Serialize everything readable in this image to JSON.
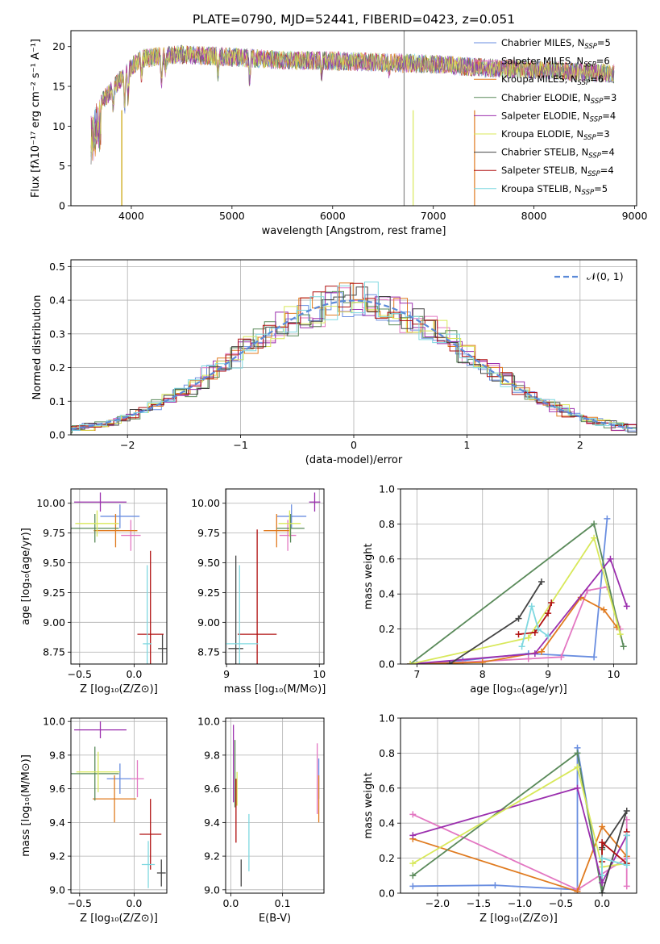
{
  "figure_title": "PLATE=0790, MJD=52441, FIBERID=0423, z=0.051",
  "series_styles": [
    {
      "color": "#6a8ee0"
    },
    {
      "color": "#e377c2"
    },
    {
      "color": "#e07b20"
    },
    {
      "color": "#5a8a5a"
    },
    {
      "color": "#9b2fae"
    },
    {
      "color": "#d8e85a"
    },
    {
      "color": "#444444"
    },
    {
      "color": "#b01010"
    },
    {
      "color": "#7fd8e0"
    }
  ],
  "chart_data": [
    {
      "id": "spectrum",
      "type": "line",
      "title": "",
      "xlabel": "wavelength [Angstrom, rest frame]",
      "ylabel": "Flux [fλ10⁻¹⁷ erg cm⁻² s⁻¹ A⁻¹]",
      "xlim": [
        3400,
        9020
      ],
      "ylim": [
        0,
        22
      ],
      "xticks": [
        4000,
        5000,
        6000,
        7000,
        8000,
        9000
      ],
      "yticks": [
        0,
        5,
        10,
        15,
        20
      ],
      "grid": false,
      "legend_position": "top-right",
      "legend": [
        "Chabrier MILES, N_SSP=5",
        "Salpeter MILES, N_SSP=6",
        "Kroupa MILES, N_SSP=6",
        "Chabrier ELODIE, N_SSP=3",
        "Salpeter ELODIE, N_SSP=4",
        "Kroupa ELODIE, N_SSP=3",
        "Chabrier STELIB, N_SSP=4",
        "Salpeter STELIB, N_SSP=4",
        "Kroupa STELIB, N_SSP=5"
      ],
      "data_envelope": {
        "x": [
          3600,
          3700,
          3800,
          3900,
          4000,
          4100,
          4300,
          4500,
          5000,
          5500,
          6000,
          6500,
          7000,
          7400,
          8000,
          8500,
          8800
        ],
        "y": [
          11,
          13,
          14.5,
          16,
          17.5,
          18.5,
          18.8,
          19,
          18.7,
          18.3,
          18.2,
          18,
          17.8,
          17.4,
          17.1,
          16.8,
          16.6
        ]
      }
    },
    {
      "id": "residuals",
      "type": "line",
      "title": "",
      "xlabel": "(data-model)/error",
      "ylabel": "Normed distribution",
      "xlim": [
        -2.5,
        2.5
      ],
      "ylim": [
        0,
        0.52
      ],
      "xticks": [
        -2,
        -1,
        0,
        1,
        2
      ],
      "yticks": [
        0.0,
        0.1,
        0.2,
        0.3,
        0.4,
        0.5
      ],
      "grid": true,
      "legend_position": "top-right",
      "legend": [
        "𝒩(0, 1)"
      ],
      "reference_curve": "standard normal"
    },
    {
      "id": "age_vs_Z",
      "type": "scatter",
      "xlabel": "Z [log₁₀(Z/Z⊙)]",
      "ylabel": "age  [log₁₀(age/yr)]",
      "xlim": [
        -0.58,
        0.3
      ],
      "ylim": [
        8.65,
        10.12
      ],
      "xticks": [
        -0.5,
        0.0
      ],
      "yticks": [
        8.75,
        9.0,
        9.25,
        9.5,
        9.75,
        10.0
      ],
      "grid": true,
      "points": [
        {
          "x": -0.13,
          "y": 9.89,
          "xerr": 0.18,
          "yerr": 0.1
        },
        {
          "x": -0.03,
          "y": 9.73,
          "xerr": 0.09,
          "yerr": 0.13
        },
        {
          "x": -0.17,
          "y": 9.77,
          "xerr": 0.2,
          "yerr": 0.14
        },
        {
          "x": -0.36,
          "y": 9.79,
          "xerr": 0.22,
          "yerr": 0.12
        },
        {
          "x": -0.31,
          "y": 10.01,
          "xerr": 0.24,
          "yerr": 0.08
        },
        {
          "x": -0.34,
          "y": 9.83,
          "xerr": 0.2,
          "yerr": 0.11
        },
        {
          "x": 0.26,
          "y": 8.78,
          "xerr": 0.04,
          "yerr": 0.12
        },
        {
          "x": 0.15,
          "y": 8.9,
          "xerr": 0.12,
          "yerr": 0.7
        },
        {
          "x": 0.12,
          "y": 8.82,
          "xerr": 0.04,
          "yerr": 0.66
        }
      ]
    },
    {
      "id": "age_vs_mass",
      "type": "scatter",
      "xlabel": "mass [log₁₀(M/M⊙)]",
      "ylabel": "",
      "xlim": [
        8.99,
        10.05
      ],
      "ylim": [
        8.65,
        10.12
      ],
      "xticks": [
        9,
        10
      ],
      "yticks": [
        8.75,
        9.0,
        9.25,
        9.5,
        9.75,
        10.0
      ],
      "grid": true,
      "points": [
        {
          "x": 9.7,
          "y": 9.89,
          "xerr": 0.16,
          "yerr": 0.1
        },
        {
          "x": 9.66,
          "y": 9.73,
          "xerr": 0.09,
          "yerr": 0.13
        },
        {
          "x": 9.54,
          "y": 9.77,
          "xerr": 0.14,
          "yerr": 0.14
        },
        {
          "x": 9.69,
          "y": 9.79,
          "xerr": 0.15,
          "yerr": 0.12
        },
        {
          "x": 9.95,
          "y": 10.01,
          "xerr": 0.06,
          "yerr": 0.08
        },
        {
          "x": 9.68,
          "y": 9.83,
          "xerr": 0.12,
          "yerr": 0.11
        },
        {
          "x": 9.1,
          "y": 8.78,
          "xerr": 0.08,
          "yerr": 0.78
        },
        {
          "x": 9.33,
          "y": 8.9,
          "xerr": 0.21,
          "yerr": 0.88
        },
        {
          "x": 9.14,
          "y": 8.82,
          "xerr": 0.2,
          "yerr": 0.66
        }
      ]
    },
    {
      "id": "mass_weight_vs_age",
      "type": "line",
      "xlabel": "age  [log₁₀(age/yr)]",
      "ylabel": "mass weight",
      "xlim": [
        6.75,
        10.35
      ],
      "ylim": [
        0,
        1
      ],
      "xticks": [
        7,
        8,
        9,
        10
      ],
      "yticks": [
        0.0,
        0.2,
        0.4,
        0.6,
        0.8,
        1.0
      ],
      "grid": true,
      "series": [
        {
          "x": [
            7.0,
            7.7,
            8.7,
            9.7,
            9.9
          ],
          "y": [
            0.0,
            0.02,
            0.06,
            0.04,
            0.83
          ]
        },
        {
          "x": [
            6.9,
            7.7,
            8.7,
            9.2,
            9.6,
            9.9,
            10.1
          ],
          "y": [
            0.0,
            0.01,
            0.03,
            0.04,
            0.42,
            0.44,
            0.2
          ]
        },
        {
          "x": [
            6.9,
            8.0,
            8.9,
            9.5,
            9.85,
            10.05
          ],
          "y": [
            0.0,
            0.01,
            0.07,
            0.38,
            0.31,
            0.21
          ]
        },
        {
          "x": [
            6.9,
            9.7,
            10.15
          ],
          "y": [
            0.0,
            0.8,
            0.1
          ]
        },
        {
          "x": [
            6.9,
            8.8,
            9.95,
            10.2
          ],
          "y": [
            0.0,
            0.06,
            0.6,
            0.33
          ]
        },
        {
          "x": [
            6.9,
            8.7,
            9.7,
            10.1
          ],
          "y": [
            0.0,
            0.15,
            0.72,
            0.17
          ]
        },
        {
          "x": [
            7.5,
            8.55,
            8.9
          ],
          "y": [
            0.0,
            0.26,
            0.47
          ]
        },
        {
          "x": [
            8.55,
            8.8,
            9.0,
            9.05
          ],
          "y": [
            0.17,
            0.18,
            0.29,
            0.35
          ]
        },
        {
          "x": [
            8.6,
            8.75,
            8.85,
            9.0
          ],
          "y": [
            0.1,
            0.33,
            0.2,
            0.16
          ]
        }
      ]
    },
    {
      "id": "mass_vs_Z",
      "type": "scatter",
      "xlabel": "Z [log₁₀(Z/Z⊙)]",
      "ylabel": "mass [log₁₀(M/M⊙)]",
      "xlim": [
        -0.58,
        0.3
      ],
      "ylim": [
        8.98,
        10.02
      ],
      "xticks": [
        -0.5,
        0.0
      ],
      "yticks": [
        9.0,
        9.2,
        9.4,
        9.6,
        9.8,
        10.0
      ],
      "grid": true,
      "points": [
        {
          "x": -0.13,
          "y": 9.66,
          "xerr": 0.12,
          "yerr": 0.09
        },
        {
          "x": 0.03,
          "y": 9.66,
          "xerr": 0.06,
          "yerr": 0.11
        },
        {
          "x": -0.18,
          "y": 9.54,
          "xerr": 0.2,
          "yerr": 0.14
        },
        {
          "x": -0.36,
          "y": 9.69,
          "xerr": 0.22,
          "yerr": 0.16
        },
        {
          "x": -0.31,
          "y": 9.95,
          "xerr": 0.24,
          "yerr": 0.05
        },
        {
          "x": -0.33,
          "y": 9.7,
          "xerr": 0.2,
          "yerr": 0.12
        },
        {
          "x": 0.25,
          "y": 9.1,
          "xerr": 0.04,
          "yerr": 0.08
        },
        {
          "x": 0.15,
          "y": 9.33,
          "xerr": 0.1,
          "yerr": 0.21
        },
        {
          "x": 0.13,
          "y": 9.15,
          "xerr": 0.06,
          "yerr": 0.14
        }
      ]
    },
    {
      "id": "mass_vs_ebv",
      "type": "scatter",
      "xlabel": "E(B-V)",
      "ylabel": "",
      "xlim": [
        -0.01,
        0.18
      ],
      "ylim": [
        8.98,
        10.02
      ],
      "xticks": [
        0.0,
        0.1
      ],
      "yticks": [
        9.0,
        9.2,
        9.4,
        9.6,
        9.8,
        10.0
      ],
      "grid": true,
      "points": [
        {
          "x": 0.17,
          "y": 9.66,
          "xerr": 0.0,
          "yerr": 0.12
        },
        {
          "x": 0.167,
          "y": 9.66,
          "xerr": 0.0,
          "yerr": 0.21
        },
        {
          "x": 0.17,
          "y": 9.54,
          "xerr": 0.0,
          "yerr": 0.14
        },
        {
          "x": 0.008,
          "y": 9.69,
          "xerr": 0.0,
          "yerr": 0.2
        },
        {
          "x": 0.005,
          "y": 9.75,
          "xerr": 0.0,
          "yerr": 0.23
        },
        {
          "x": 0.012,
          "y": 9.6,
          "xerr": 0.0,
          "yerr": 0.1
        },
        {
          "x": 0.02,
          "y": 9.1,
          "xerr": 0.0,
          "yerr": 0.08
        },
        {
          "x": 0.01,
          "y": 9.47,
          "xerr": 0.0,
          "yerr": 0.19
        },
        {
          "x": 0.035,
          "y": 9.28,
          "xerr": 0.0,
          "yerr": 0.17
        }
      ]
    },
    {
      "id": "mass_weight_vs_Z",
      "type": "line",
      "xlabel": "Z [log₁₀(Z/Z⊙)]",
      "ylabel": "mass weight",
      "xlim": [
        -2.45,
        0.42
      ],
      "ylim": [
        0,
        1
      ],
      "xticks": [
        -2.0,
        -1.5,
        -1.0,
        -0.5,
        0.0
      ],
      "yticks": [
        0.0,
        0.2,
        0.4,
        0.6,
        0.8,
        1.0
      ],
      "grid": true,
      "series": [
        {
          "x": [
            -2.3,
            -1.3,
            -0.3,
            -0.3,
            0.0
          ],
          "y": [
            0.04,
            0.045,
            0.02,
            0.83,
            0.0
          ]
        },
        {
          "x": [
            -2.3,
            -0.3,
            0.3,
            0.3,
            0.3
          ],
          "y": [
            0.45,
            0.02,
            0.2,
            0.04,
            0.42
          ]
        },
        {
          "x": [
            -2.3,
            -0.3,
            0.0,
            0.3
          ],
          "y": [
            0.31,
            0.01,
            0.38,
            0.21
          ]
        },
        {
          "x": [
            -2.3,
            -0.3,
            0.0,
            0.0
          ],
          "y": [
            0.1,
            0.8,
            0.0,
            0.25
          ]
        },
        {
          "x": [
            -2.3,
            -0.3,
            0.0,
            0.3
          ],
          "y": [
            0.33,
            0.6,
            0.06,
            0.33
          ]
        },
        {
          "x": [
            -2.3,
            -0.3,
            0.0,
            0.3
          ],
          "y": [
            0.17,
            0.72,
            0.15,
            0.17
          ]
        },
        {
          "x": [
            0.0,
            0.3,
            0.0
          ],
          "y": [
            0.0,
            0.47,
            0.26
          ]
        },
        {
          "x": [
            0.0,
            0.0,
            0.3,
            0.3
          ],
          "y": [
            0.18,
            0.29,
            0.17,
            0.35
          ]
        },
        {
          "x": [
            0.0,
            0.0,
            0.3,
            0.3
          ],
          "y": [
            0.1,
            0.2,
            0.16,
            0.33
          ]
        }
      ]
    }
  ]
}
